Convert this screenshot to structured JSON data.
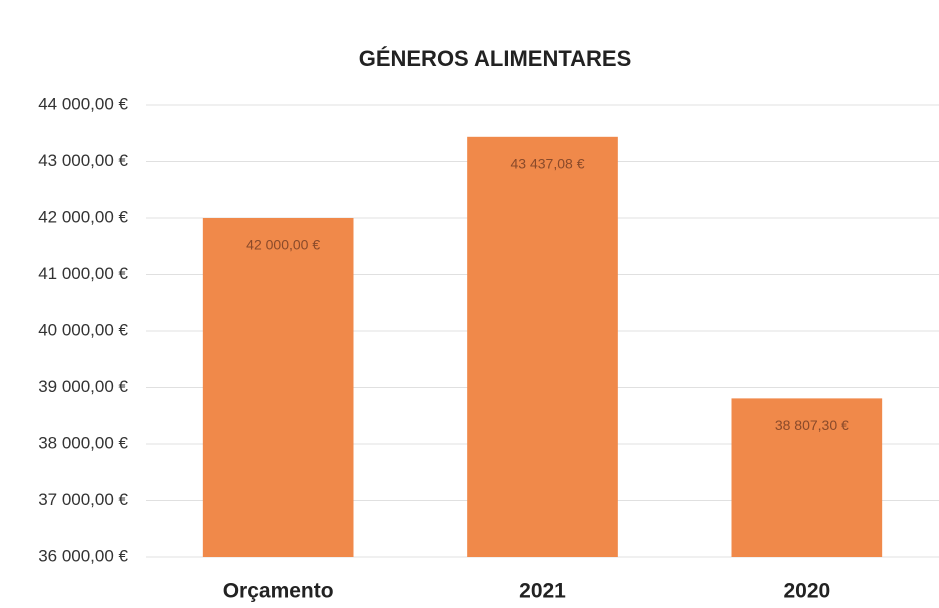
{
  "chart_data": {
    "type": "bar",
    "title": "GÉNEROS ALIMENTARES",
    "categories": [
      "Orçamento",
      "2021",
      "2020"
    ],
    "values": [
      42000,
      43437.08,
      38807.3
    ],
    "value_labels": [
      "42 000,00 €",
      "43 437,08 €",
      "38 807,30 €"
    ],
    "color": "#f0894a",
    "ylim": [
      36000,
      44000
    ],
    "yticks": [
      {
        "value": 36000,
        "label": "36 000,00 €"
      },
      {
        "value": 37000,
        "label": "37 000,00 €"
      },
      {
        "value": 38000,
        "label": "38 000,00 €"
      },
      {
        "value": 39000,
        "label": "39 000,00 €"
      },
      {
        "value": 40000,
        "label": "40 000,00 €"
      },
      {
        "value": 41000,
        "label": "41 000,00 €"
      },
      {
        "value": 42000,
        "label": "42 000,00 €"
      },
      {
        "value": 43000,
        "label": "43 000,00 €"
      },
      {
        "value": 44000,
        "label": "44 000,00 €"
      }
    ],
    "grid": true
  }
}
